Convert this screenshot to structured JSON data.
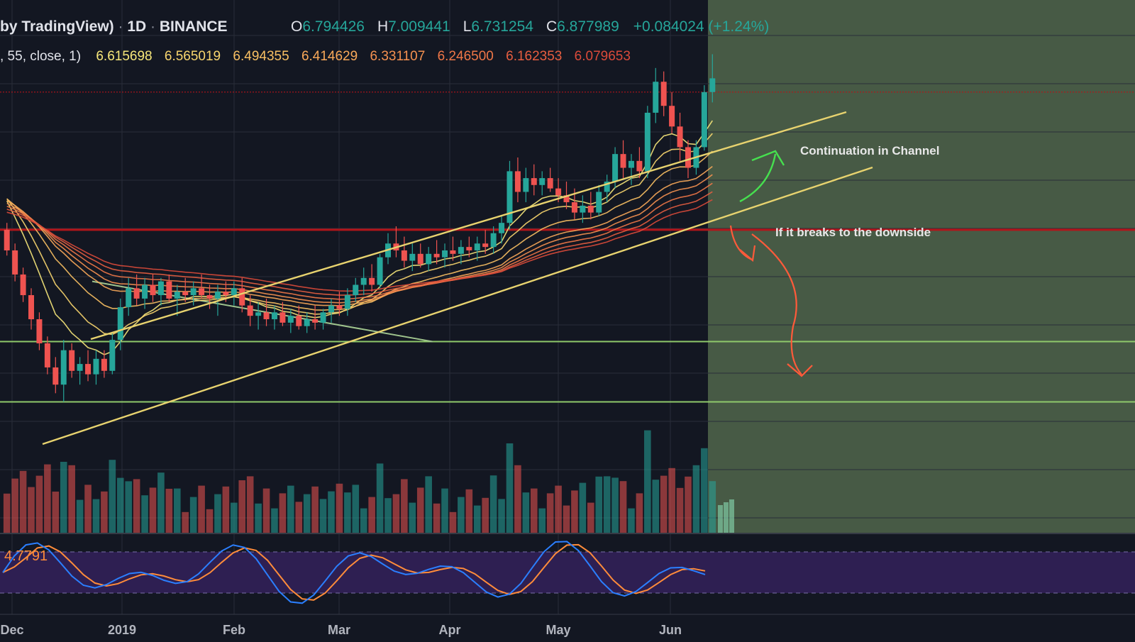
{
  "header": {
    "symbol_prefix": "by TradingView)",
    "sep1": " · ",
    "interval": "1D",
    "sep2": " · ",
    "exchange": "BINANCE",
    "o_label": "O",
    "o_value": "6.794426",
    "h_label": "H",
    "h_value": "7.009441",
    "l_label": "L",
    "l_value": "6.731254",
    "c_label": "C",
    "c_value": "6.877989",
    "change": "+0.084024 (+1.24%)",
    "ribbon_params": ", 55, close, 1)",
    "ribbon_values": [
      "6.615698",
      "6.565019",
      "6.494355",
      "6.414629",
      "6.331107",
      "6.246500",
      "6.162353",
      "6.079653"
    ]
  },
  "colors": {
    "background": "#131722",
    "projection_zone": "#4a5e48",
    "channel": "#e8d36f",
    "resistance_red": "#b3141a",
    "support_green": "#8fc96b",
    "up_candle": "#26a69a",
    "down_candle": "#ef5350",
    "green_arrow": "#46e04f",
    "red_arrow": "#ff5a3a",
    "stoch_k": "#2b7fff",
    "stoch_d": "#ff8c3a",
    "stoch_band": "#2e1f52",
    "ribbon": [
      "#f7e77a",
      "#f8d56e",
      "#f9c063",
      "#f9a959",
      "#f69150",
      "#f07747",
      "#e75e40",
      "#db4a3a"
    ]
  },
  "annotations": {
    "continuation": "Continuation in Channel",
    "breakdown": "If it breaks to the downside"
  },
  "stoch": {
    "value_label": "4.7791"
  },
  "chart_data": {
    "type": "candlestick",
    "x_axis": {
      "tick_labels": [
        "Dec",
        "2019",
        "Feb",
        "Mar",
        "Apr",
        "May",
        "Jun"
      ]
    },
    "price_range": [
      4.4,
      7.5
    ],
    "last_candle": {
      "open": 6.794426,
      "high": 7.009441,
      "low": 6.731254,
      "close": 6.877989
    },
    "ribbon_ema_values": [
      6.615698,
      6.565019,
      6.494355,
      6.414629,
      6.331107,
      6.2465,
      6.162353,
      6.079653
    ],
    "horizontal_levels": {
      "dotted_red": 6.8,
      "resistance_red": 6.0,
      "support_green_upper": 5.35,
      "support_green_lower": 5.0
    },
    "candles": [
      [
        6.0,
        6.04,
        5.85,
        5.88
      ],
      [
        5.88,
        5.92,
        5.7,
        5.74
      ],
      [
        5.74,
        5.78,
        5.58,
        5.62
      ],
      [
        5.62,
        5.66,
        5.42,
        5.48
      ],
      [
        5.48,
        5.52,
        5.3,
        5.34
      ],
      [
        5.34,
        5.38,
        5.16,
        5.2
      ],
      [
        5.2,
        5.26,
        5.05,
        5.1
      ],
      [
        5.1,
        5.36,
        5.0,
        5.3
      ],
      [
        5.3,
        5.34,
        5.14,
        5.18
      ],
      [
        5.18,
        5.26,
        5.1,
        5.22
      ],
      [
        5.22,
        5.3,
        5.12,
        5.16
      ],
      [
        5.16,
        5.3,
        5.1,
        5.25
      ],
      [
        5.25,
        5.3,
        5.14,
        5.18
      ],
      [
        5.18,
        5.4,
        5.16,
        5.36
      ],
      [
        5.36,
        5.6,
        5.3,
        5.55
      ],
      [
        5.55,
        5.72,
        5.5,
        5.66
      ],
      [
        5.66,
        5.74,
        5.56,
        5.6
      ],
      [
        5.6,
        5.72,
        5.54,
        5.68
      ],
      [
        5.68,
        5.74,
        5.58,
        5.62
      ],
      [
        5.62,
        5.72,
        5.56,
        5.7
      ],
      [
        5.7,
        5.74,
        5.58,
        5.6
      ],
      [
        5.6,
        5.68,
        5.5,
        5.64
      ],
      [
        5.64,
        5.72,
        5.58,
        5.62
      ],
      [
        5.62,
        5.7,
        5.56,
        5.66
      ],
      [
        5.66,
        5.74,
        5.6,
        5.62
      ],
      [
        5.62,
        5.68,
        5.54,
        5.6
      ],
      [
        5.6,
        5.68,
        5.5,
        5.64
      ],
      [
        5.64,
        5.7,
        5.58,
        5.62
      ],
      [
        5.62,
        5.7,
        5.56,
        5.66
      ],
      [
        5.66,
        5.72,
        5.52,
        5.56
      ],
      [
        5.56,
        5.62,
        5.44,
        5.5
      ],
      [
        5.5,
        5.58,
        5.42,
        5.52
      ],
      [
        5.52,
        5.6,
        5.44,
        5.48
      ],
      [
        5.48,
        5.56,
        5.42,
        5.52
      ],
      [
        5.52,
        5.58,
        5.44,
        5.46
      ],
      [
        5.46,
        5.54,
        5.4,
        5.5
      ],
      [
        5.5,
        5.56,
        5.42,
        5.44
      ],
      [
        5.44,
        5.52,
        5.4,
        5.48
      ],
      [
        5.48,
        5.56,
        5.42,
        5.46
      ],
      [
        5.46,
        5.54,
        5.42,
        5.52
      ],
      [
        5.52,
        5.6,
        5.46,
        5.56
      ],
      [
        5.56,
        5.64,
        5.5,
        5.54
      ],
      [
        5.54,
        5.66,
        5.5,
        5.62
      ],
      [
        5.62,
        5.72,
        5.58,
        5.68
      ],
      [
        5.68,
        5.78,
        5.62,
        5.72
      ],
      [
        5.72,
        5.8,
        5.64,
        5.68
      ],
      [
        5.68,
        5.86,
        5.66,
        5.84
      ],
      [
        5.84,
        5.98,
        5.8,
        5.92
      ],
      [
        5.92,
        6.02,
        5.84,
        5.88
      ],
      [
        5.88,
        5.96,
        5.78,
        5.82
      ],
      [
        5.82,
        5.92,
        5.76,
        5.86
      ],
      [
        5.86,
        5.92,
        5.78,
        5.8
      ],
      [
        5.8,
        5.9,
        5.76,
        5.86
      ],
      [
        5.86,
        5.94,
        5.8,
        5.84
      ],
      [
        5.84,
        5.92,
        5.78,
        5.88
      ],
      [
        5.88,
        5.96,
        5.82,
        5.86
      ],
      [
        5.86,
        5.94,
        5.8,
        5.9
      ],
      [
        5.9,
        5.96,
        5.84,
        5.88
      ],
      [
        5.88,
        5.96,
        5.82,
        5.92
      ],
      [
        5.92,
        6.0,
        5.86,
        5.9
      ],
      [
        5.9,
        6.02,
        5.86,
        5.98
      ],
      [
        5.98,
        6.08,
        5.92,
        6.04
      ],
      [
        6.04,
        6.4,
        6.0,
        6.34
      ],
      [
        6.34,
        6.42,
        6.16,
        6.22
      ],
      [
        6.22,
        6.36,
        6.16,
        6.3
      ],
      [
        6.3,
        6.38,
        6.2,
        6.26
      ],
      [
        6.26,
        6.34,
        6.2,
        6.3
      ],
      [
        6.3,
        6.36,
        6.22,
        6.24
      ],
      [
        6.24,
        6.3,
        6.16,
        6.2
      ],
      [
        6.2,
        6.28,
        6.12,
        6.16
      ],
      [
        6.16,
        6.24,
        6.06,
        6.1
      ],
      [
        6.1,
        6.2,
        6.04,
        6.14
      ],
      [
        6.14,
        6.22,
        6.06,
        6.1
      ],
      [
        6.1,
        6.26,
        6.08,
        6.22
      ],
      [
        6.22,
        6.32,
        6.16,
        6.28
      ],
      [
        6.28,
        6.48,
        6.24,
        6.44
      ],
      [
        6.44,
        6.52,
        6.3,
        6.36
      ],
      [
        6.36,
        6.44,
        6.26,
        6.4
      ],
      [
        6.4,
        6.48,
        6.3,
        6.34
      ],
      [
        6.34,
        6.72,
        6.3,
        6.68
      ],
      [
        6.68,
        6.94,
        6.62,
        6.86
      ],
      [
        6.86,
        6.92,
        6.66,
        6.72
      ],
      [
        6.72,
        6.8,
        6.56,
        6.6
      ],
      [
        6.6,
        6.68,
        6.4,
        6.48
      ],
      [
        6.48,
        6.52,
        6.3,
        6.36
      ],
      [
        6.36,
        6.52,
        6.32,
        6.48
      ],
      [
        6.48,
        6.84,
        6.46,
        6.8
      ],
      [
        6.8,
        7.02,
        6.74,
        6.88
      ]
    ]
  }
}
